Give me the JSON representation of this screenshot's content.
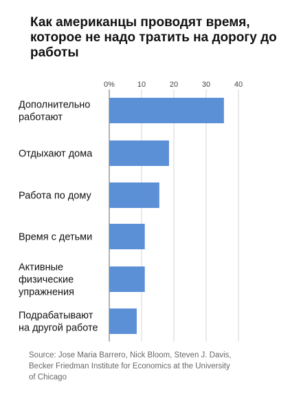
{
  "chart_data": {
    "type": "bar",
    "orientation": "horizontal",
    "title": "Как американцы проводят время, которое не надо тратить на дорогу до работы",
    "categories": [
      "Дополнительно работают",
      "Отдыхают дома",
      "Работа по дому",
      "Время с детьми",
      "Активные физические упражнения",
      "Подрабатывают на другой работе"
    ],
    "category_lines": [
      [
        "Дополнительно",
        "работают"
      ],
      [
        "Отдыхают дома"
      ],
      [
        "Работа по дому"
      ],
      [
        "Время с детьми"
      ],
      [
        "Активные",
        "физические",
        "упражнения"
      ],
      [
        "Подрабатывают",
        "на другой работе"
      ]
    ],
    "values": [
      35.5,
      18.5,
      15.5,
      11,
      11,
      8.5
    ],
    "xlim": [
      0,
      40
    ],
    "ticks": [
      0,
      10,
      20,
      30,
      40
    ],
    "tick_labels": [
      "0%",
      "10",
      "20",
      "30",
      "40"
    ],
    "grid": true,
    "legend": "none",
    "xlabel": "",
    "ylabel": "",
    "colors": {
      "bar": "#5b8fd6",
      "grid": "#d4d4d4",
      "axis": "#666666"
    },
    "source": "Source: Jose Maria Barrero, Nick Bloom, Steven J. Davis, Becker Friedman Institute for Economics at the University of Chicago"
  }
}
